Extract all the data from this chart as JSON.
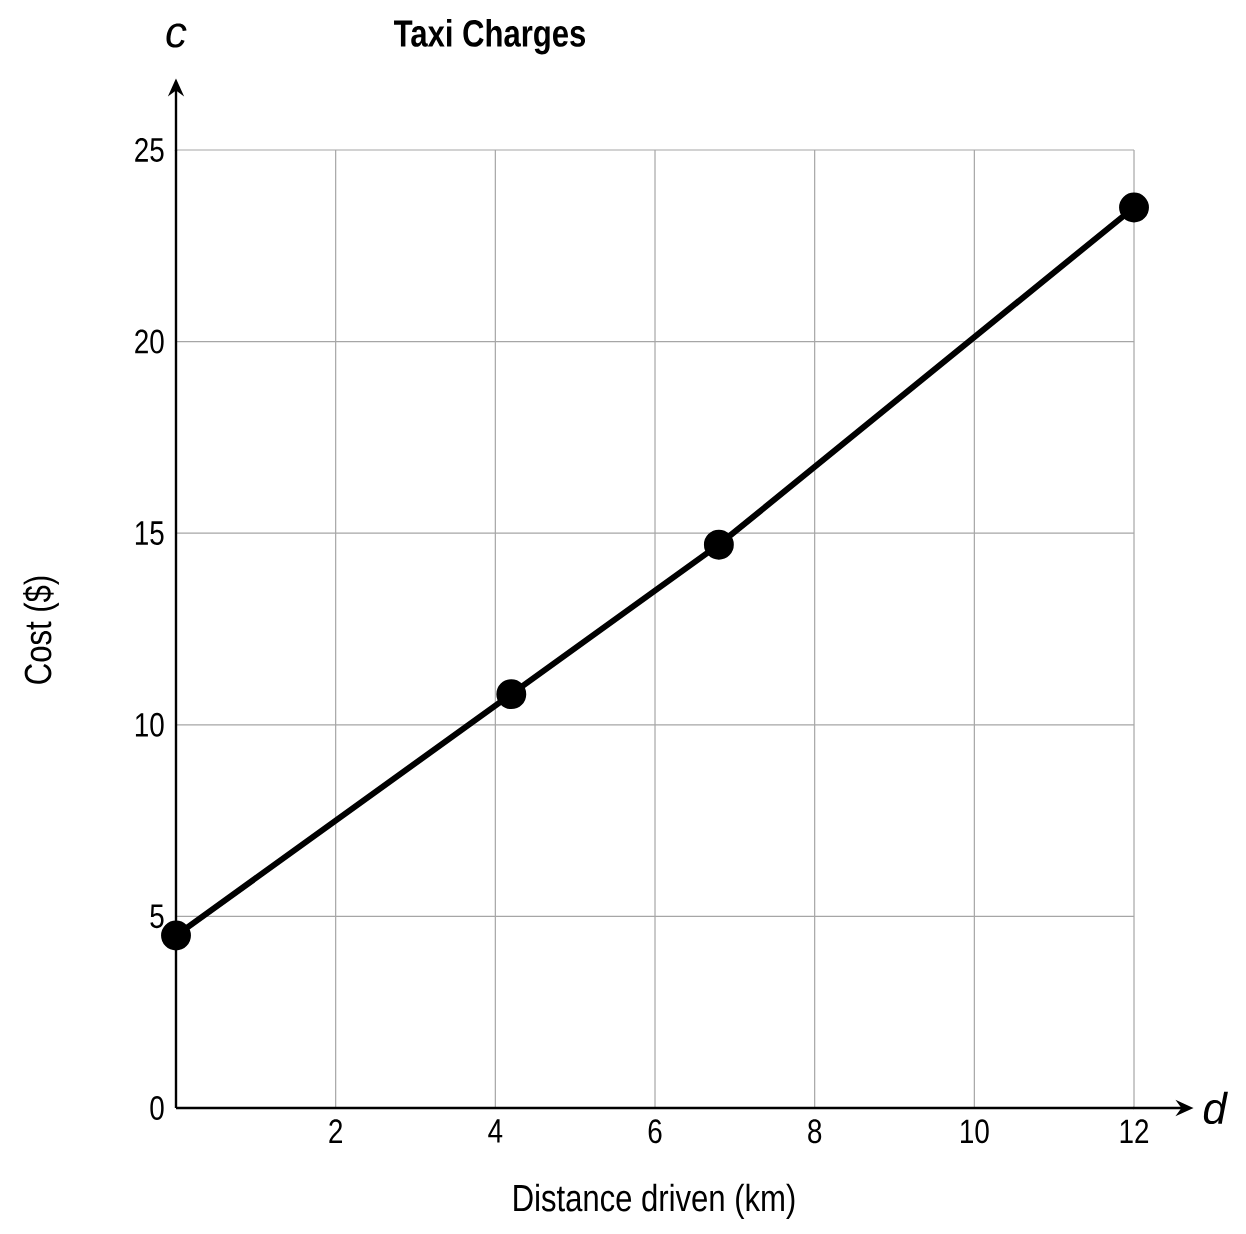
{
  "chart_data": {
    "type": "line",
    "title": "Taxi Charges",
    "xlabel": "Distance driven (km)",
    "ylabel": "Cost ($)",
    "annotations": [
      "c",
      "d"
    ],
    "x": [
      0,
      4.2,
      6.8,
      12
    ],
    "series": [
      {
        "color": "#000000",
        "values": [
          4.5,
          10.8,
          14.7,
          23.5
        ]
      }
    ],
    "xlim": [
      0,
      12
    ],
    "ylim": [
      0,
      25
    ],
    "xticks": [
      2,
      4,
      6,
      8,
      10,
      12
    ],
    "yticks": [
      0,
      5,
      10,
      15,
      20,
      25
    ],
    "grid": true,
    "marker": "circle",
    "line_style": "solid"
  }
}
